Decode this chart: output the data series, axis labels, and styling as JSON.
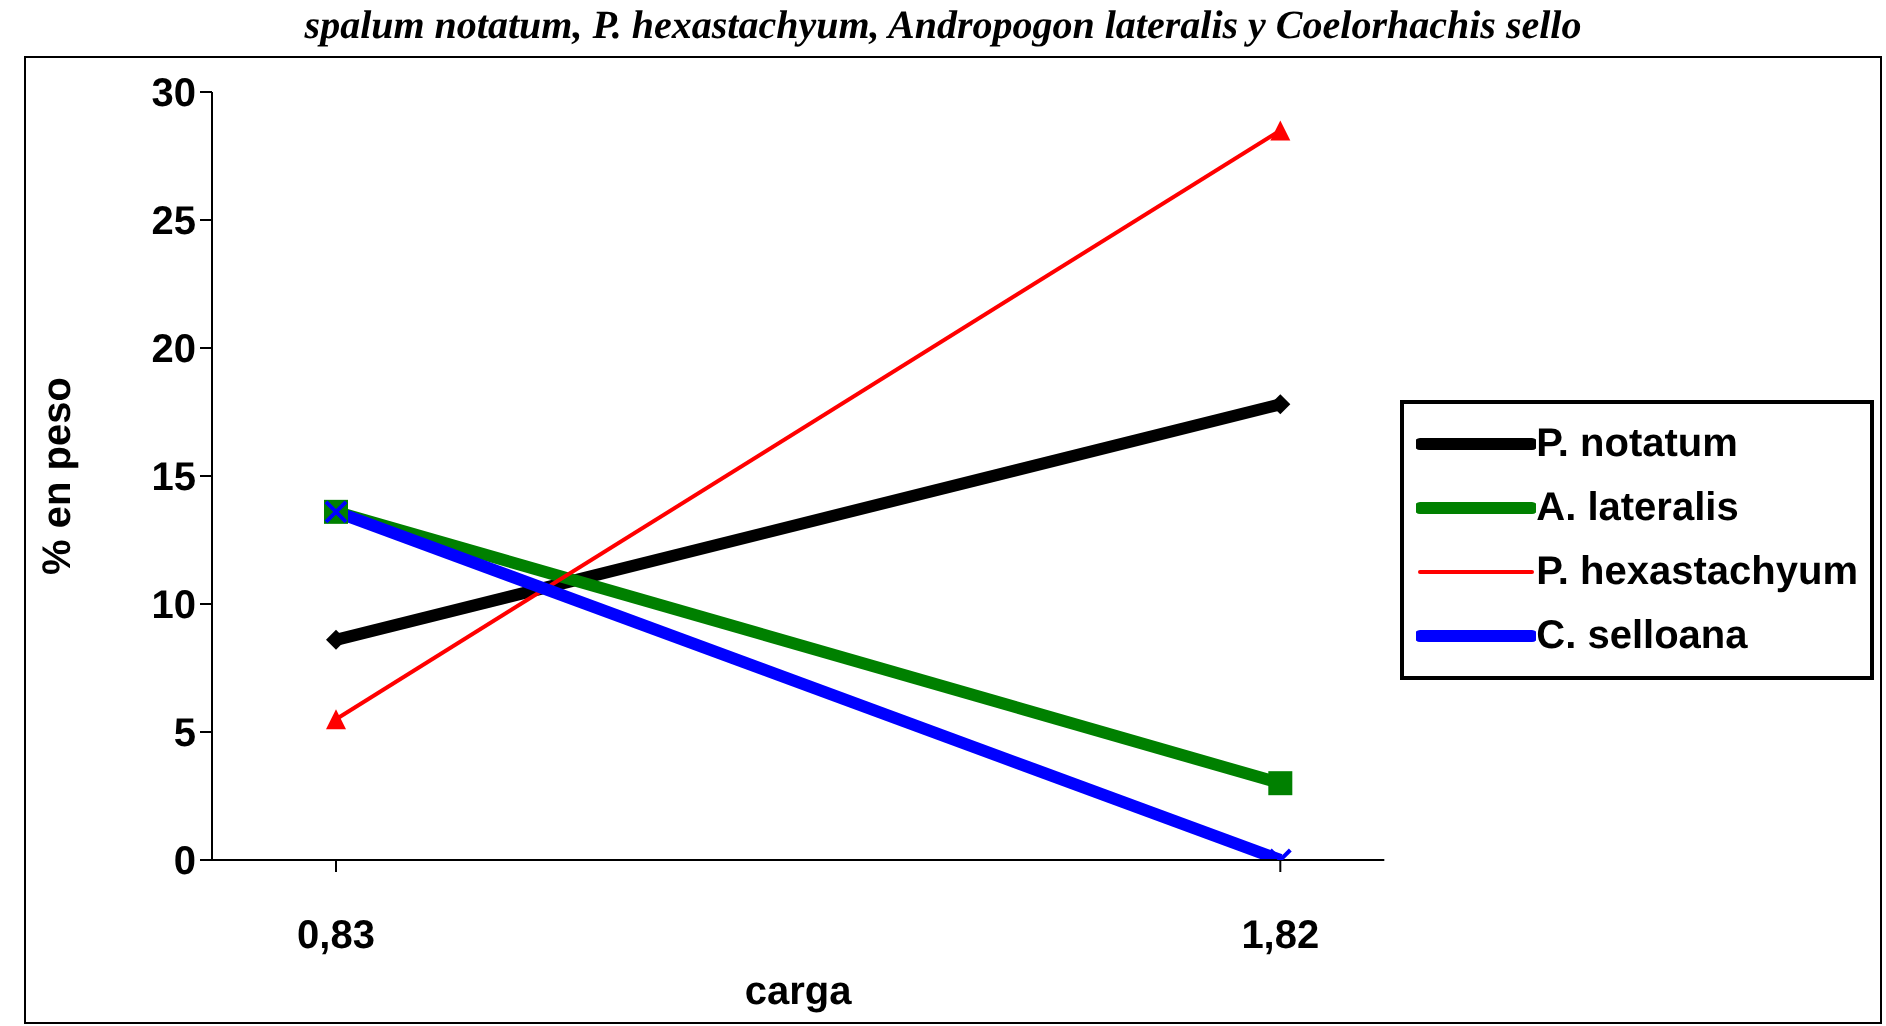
{
  "chart_data": {
    "type": "line",
    "title": "spalum notatum, P. hexastachyum, Andropogon lateralis y Coelorhachis sello",
    "xlabel": "carga",
    "ylabel": "% en peso",
    "categories": [
      "0,83",
      "1,82"
    ],
    "series": [
      {
        "name": "P. notatum",
        "color": "#000000",
        "values": [
          8.6,
          17.8
        ],
        "marker": "diamond"
      },
      {
        "name": "A. lateralis",
        "color": "#008000",
        "values": [
          13.6,
          3.0
        ],
        "marker": "square"
      },
      {
        "name": "P. hexastachyum",
        "color": "#ff0000",
        "values": [
          5.5,
          28.5
        ],
        "marker": "triangle"
      },
      {
        "name": "C. selloana",
        "color": "#0000ff",
        "values": [
          13.6,
          0
        ],
        "marker": "cross"
      }
    ],
    "ylim": [
      0,
      30
    ],
    "yticks": [
      0,
      5,
      10,
      15,
      20,
      25,
      30
    ],
    "legend": "right"
  }
}
